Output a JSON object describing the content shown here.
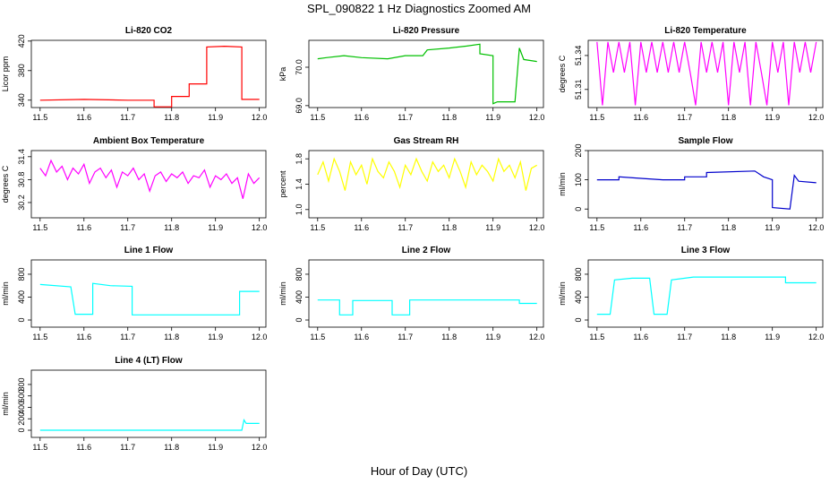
{
  "title": "SPL_090822  1 Hz Diagnostics Zoomed AM",
  "x_label": "Hour of Day (UTC)",
  "chart_data": [
    {
      "type": "line",
      "title": "Li-820 CO2",
      "y_label": "Licor ppm",
      "color": "#ff0000",
      "x": [
        11.5,
        11.6,
        11.7,
        11.76,
        11.76,
        11.8,
        11.8,
        11.84,
        11.84,
        11.88,
        11.88,
        11.92,
        11.96,
        11.96,
        12.0
      ],
      "values": [
        340,
        341,
        340,
        340,
        331,
        331,
        345,
        345,
        362,
        362,
        412,
        413,
        412,
        341,
        341
      ],
      "xlim": [
        11.48,
        12.015
      ],
      "xticks": [
        11.5,
        11.6,
        11.7,
        11.8,
        11.9,
        {
          "value": 12,
          "label": "12.0"
        }
      ],
      "ylim": [
        330,
        421
      ],
      "yticks": [
        340,
        380,
        420
      ]
    },
    {
      "type": "line",
      "title": "Li-820 Pressure",
      "y_label": "kPa",
      "color": "#00c000",
      "x": [
        11.5,
        11.52,
        11.56,
        11.6,
        11.66,
        11.7,
        11.74,
        11.75,
        11.8,
        11.84,
        11.87,
        11.87,
        11.9,
        11.9,
        11.91,
        11.95,
        11.96,
        11.97,
        12.0
      ],
      "values": [
        70.22,
        70.25,
        70.3,
        70.25,
        70.22,
        70.3,
        70.3,
        70.45,
        70.5,
        70.55,
        70.6,
        70.35,
        70.3,
        69.05,
        69.1,
        69.1,
        70.5,
        70.2,
        70.15
      ],
      "xlim": [
        11.48,
        12.015
      ],
      "xticks": [
        11.5,
        11.6,
        11.7,
        11.8,
        11.9,
        {
          "value": 12,
          "label": "12.0"
        }
      ],
      "ylim": [
        68.95,
        70.7
      ],
      "yticks": [
        {
          "value": 69,
          "label": "69.0"
        },
        {
          "value": 70,
          "label": "70.0"
        }
      ]
    },
    {
      "type": "line",
      "title": "Li-820 Temperature",
      "y_label": "degrees C",
      "color": "#ff00ff",
      "x": [
        11.5,
        11.5125,
        11.525,
        11.5375,
        11.55,
        11.5625,
        11.575,
        11.5875,
        11.6,
        11.6125,
        11.625,
        11.6375,
        11.65,
        11.6625,
        11.675,
        11.6875,
        11.7,
        11.7125,
        11.725,
        11.7375,
        11.75,
        11.7625,
        11.775,
        11.7875,
        11.8,
        11.8125,
        11.825,
        11.8375,
        11.85,
        11.8625,
        11.875,
        11.8875,
        11.9,
        11.9125,
        11.925,
        11.9375,
        11.95,
        11.9625,
        11.975,
        11.9875,
        12.0
      ],
      "values": [
        51.352,
        51.296,
        51.352,
        51.325,
        51.352,
        51.325,
        51.352,
        51.296,
        51.352,
        51.325,
        51.352,
        51.325,
        51.352,
        51.325,
        51.352,
        51.325,
        51.352,
        51.325,
        51.296,
        51.352,
        51.325,
        51.352,
        51.325,
        51.352,
        51.296,
        51.352,
        51.325,
        51.352,
        51.296,
        51.352,
        51.325,
        51.296,
        51.352,
        51.325,
        51.352,
        51.296,
        51.352,
        51.325,
        51.352,
        51.325,
        51.352
      ],
      "xlim": [
        11.48,
        12.015
      ],
      "xticks": [
        11.5,
        11.6,
        11.7,
        11.8,
        11.9,
        {
          "value": 12,
          "label": "12.0"
        }
      ],
      "ylim": [
        51.294,
        51.3534
      ],
      "yticks": [
        51.31,
        51.34
      ]
    },
    {
      "type": "line",
      "title": "Ambient Box Temperature",
      "y_label": "degrees C",
      "color": "#ff00ff",
      "x": [
        11.5,
        11.5125,
        11.525,
        11.5375,
        11.55,
        11.5625,
        11.575,
        11.5875,
        11.6,
        11.6125,
        11.625,
        11.6375,
        11.65,
        11.6625,
        11.675,
        11.6875,
        11.7,
        11.7125,
        11.725,
        11.7375,
        11.75,
        11.7625,
        11.775,
        11.7875,
        11.8,
        11.8125,
        11.825,
        11.8375,
        11.85,
        11.8625,
        11.875,
        11.8875,
        11.9,
        11.9125,
        11.925,
        11.9375,
        11.95,
        11.9625,
        11.975,
        11.9875,
        12.0
      ],
      "values": [
        31.1,
        30.9,
        31.3,
        31.0,
        31.15,
        30.8,
        31.1,
        30.95,
        31.2,
        30.7,
        31.0,
        31.1,
        30.85,
        31.05,
        30.6,
        31.0,
        30.9,
        31.1,
        30.8,
        30.95,
        30.5,
        30.9,
        31.0,
        30.75,
        30.95,
        30.85,
        31.0,
        30.7,
        30.9,
        30.85,
        31.05,
        30.6,
        30.9,
        30.8,
        30.95,
        30.7,
        30.85,
        30.3,
        30.95,
        30.7,
        30.85
      ],
      "xlim": [
        11.48,
        12.015
      ],
      "xticks": [
        11.5,
        11.6,
        11.7,
        11.8,
        11.9,
        {
          "value": 12,
          "label": "12.0"
        }
      ],
      "ylim": [
        29.8,
        31.56
      ],
      "yticks": [
        30.2,
        30.8,
        31.4
      ]
    },
    {
      "type": "line",
      "title": "Gas Stream RH",
      "y_label": "percent",
      "color": "#ffff00",
      "x": [
        11.5,
        11.5125,
        11.525,
        11.5375,
        11.55,
        11.5625,
        11.575,
        11.5875,
        11.6,
        11.6125,
        11.625,
        11.6375,
        11.65,
        11.6625,
        11.675,
        11.6875,
        11.7,
        11.7125,
        11.725,
        11.7375,
        11.75,
        11.7625,
        11.775,
        11.7875,
        11.8,
        11.8125,
        11.825,
        11.8375,
        11.85,
        11.8625,
        11.875,
        11.8875,
        11.9,
        11.9125,
        11.925,
        11.9375,
        11.95,
        11.9625,
        11.975,
        11.9875,
        12.0
      ],
      "values": [
        1.55,
        1.75,
        1.45,
        1.8,
        1.6,
        1.3,
        1.75,
        1.55,
        1.7,
        1.4,
        1.8,
        1.6,
        1.5,
        1.75,
        1.6,
        1.35,
        1.7,
        1.55,
        1.8,
        1.6,
        1.45,
        1.75,
        1.6,
        1.7,
        1.5,
        1.8,
        1.6,
        1.35,
        1.75,
        1.55,
        1.7,
        1.6,
        1.45,
        1.8,
        1.6,
        1.7,
        1.5,
        1.75,
        1.3,
        1.65,
        1.7
      ],
      "xlim": [
        11.48,
        12.015
      ],
      "xticks": [
        11.5,
        11.6,
        11.7,
        11.8,
        11.9,
        {
          "value": 12,
          "label": "12.0"
        }
      ],
      "ylim": [
        0.87,
        1.93
      ],
      "yticks": [
        {
          "value": 1,
          "label": "1.0"
        },
        1.4,
        1.8
      ]
    },
    {
      "type": "line",
      "title": "Sample Flow",
      "y_label": "ml/min",
      "color": "#0000cc",
      "x": [
        11.5,
        11.55,
        11.55,
        11.6,
        11.65,
        11.7,
        11.7,
        11.75,
        11.75,
        11.86,
        11.88,
        11.9,
        11.9,
        11.94,
        11.95,
        11.96,
        12.0
      ],
      "values": [
        100,
        100,
        110,
        105,
        100,
        100,
        110,
        110,
        125,
        130,
        110,
        100,
        5,
        0,
        115,
        95,
        90
      ],
      "xlim": [
        11.48,
        12.015
      ],
      "xticks": [
        11.5,
        11.6,
        11.7,
        11.8,
        11.9,
        {
          "value": 12,
          "label": "12.0"
        }
      ],
      "ylim": [
        -30,
        200
      ],
      "yticks": [
        0,
        100,
        200
      ]
    },
    {
      "type": "line",
      "title": "Line 1 Flow",
      "y_label": "ml/min",
      "color": "#00ffff",
      "x": [
        11.5,
        11.57,
        11.58,
        11.62,
        11.62,
        11.66,
        11.71,
        11.71,
        11.955,
        11.955,
        12.0
      ],
      "values": [
        620,
        580,
        100,
        100,
        640,
        600,
        590,
        90,
        90,
        500,
        500
      ],
      "xlim": [
        11.48,
        12.015
      ],
      "xticks": [
        11.5,
        11.6,
        11.7,
        11.8,
        11.9,
        {
          "value": 12,
          "label": "12.0"
        }
      ],
      "ylim": [
        -125,
        1050
      ],
      "yticks": [
        0,
        400,
        800
      ]
    },
    {
      "type": "line",
      "title": "Line 2 Flow",
      "y_label": "ml/min",
      "color": "#00ffff",
      "x": [
        11.5,
        11.55,
        11.55,
        11.58,
        11.58,
        11.67,
        11.67,
        11.71,
        11.71,
        11.96,
        11.96,
        12.0
      ],
      "values": [
        350,
        350,
        90,
        90,
        340,
        340,
        90,
        90,
        350,
        350,
        290,
        290
      ],
      "xlim": [
        11.48,
        12.015
      ],
      "xticks": [
        11.5,
        11.6,
        11.7,
        11.8,
        11.9,
        {
          "value": 12,
          "label": "12.0"
        }
      ],
      "ylim": [
        -125,
        1050
      ],
      "yticks": [
        0,
        400,
        800
      ]
    },
    {
      "type": "line",
      "title": "Line 3 Flow",
      "y_label": "ml/min",
      "color": "#00ffff",
      "x": [
        11.5,
        11.53,
        11.54,
        11.58,
        11.62,
        11.63,
        11.66,
        11.67,
        11.72,
        11.93,
        11.93,
        12.0
      ],
      "values": [
        100,
        100,
        700,
        730,
        730,
        100,
        100,
        700,
        750,
        750,
        650,
        650
      ],
      "xlim": [
        11.48,
        12.015
      ],
      "xticks": [
        11.5,
        11.6,
        11.7,
        11.8,
        11.9,
        {
          "value": 12,
          "label": "12.0"
        }
      ],
      "ylim": [
        -125,
        1050
      ],
      "yticks": [
        0,
        400,
        800
      ]
    },
    {
      "type": "line",
      "title": "Line 4 (LT) Flow",
      "y_label": "ml/min",
      "color": "#00ffff",
      "x": [
        11.5,
        11.96,
        11.965,
        11.97,
        12.0
      ],
      "values": [
        0,
        0,
        180,
        120,
        120
      ],
      "xlim": [
        11.48,
        12.015
      ],
      "xticks": [
        11.5,
        11.6,
        11.7,
        11.8,
        11.9,
        {
          "value": 12,
          "label": "12.0"
        }
      ],
      "ylim": [
        -125,
        1050
      ],
      "yticks": [
        0,
        200,
        400,
        600,
        800
      ]
    }
  ]
}
